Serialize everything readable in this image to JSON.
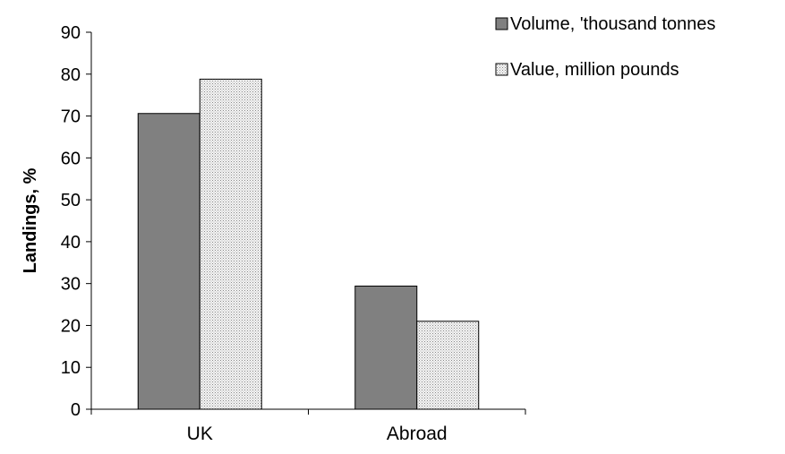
{
  "chart_data": {
    "type": "bar",
    "title": "",
    "xlabel": "",
    "ylabel": "Landings, %",
    "categories": [
      "UK",
      "Abroad"
    ],
    "series": [
      {
        "name": "Volume, 'thousand tonnes",
        "values": [
          70.6,
          29.4
        ],
        "color": "#808080",
        "pattern": "solid"
      },
      {
        "name": "Value, million pounds",
        "values": [
          78.8,
          21.0
        ],
        "color": "#e0e0e0",
        "pattern": "dotted"
      }
    ],
    "ylim": [
      0,
      90
    ],
    "yticks": [
      "0",
      "10",
      "20",
      "30",
      "40",
      "50",
      "60",
      "70",
      "80",
      "90"
    ],
    "grid": false,
    "legend_position": "top-right"
  }
}
